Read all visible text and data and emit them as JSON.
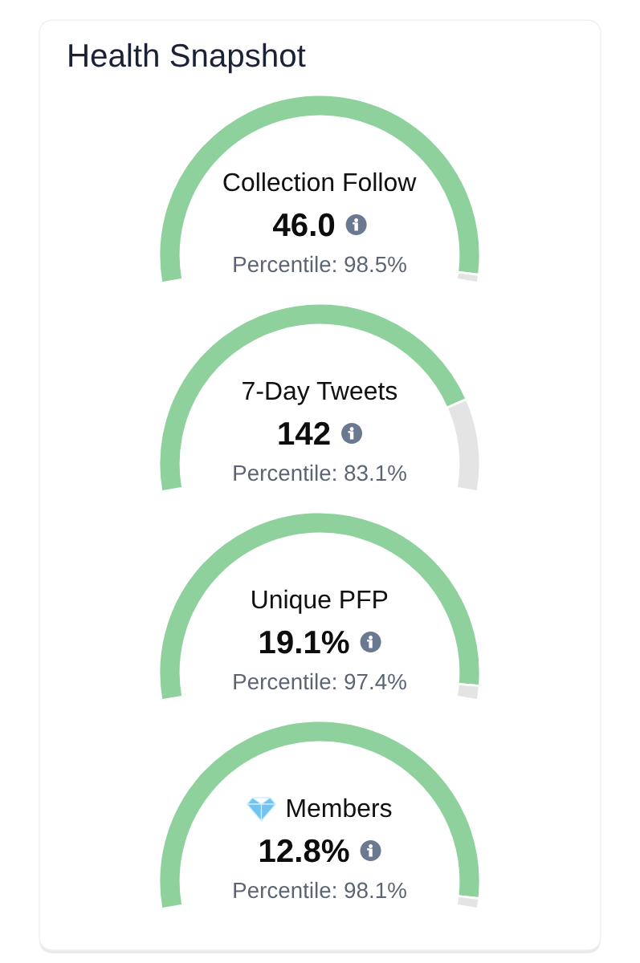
{
  "chart_data": [
    {
      "type": "other",
      "title": "Health Snapshot"
    },
    {
      "type": "donut",
      "title": "Collection Follow",
      "categories": [
        null,
        null
      ],
      "values": [
        98.5,
        1.5
      ],
      "colors": [
        "#8ed19d",
        "#e4e4e4"
      ],
      "annotations": [
        "46.0",
        "Percentile: 98.5%"
      ]
    },
    {
      "type": "donut",
      "title": "7-Day Tweets",
      "categories": [
        null,
        null
      ],
      "values": [
        83.1,
        16.9
      ],
      "colors": [
        "#8ed19d",
        "#e4e4e4"
      ],
      "annotations": [
        "142",
        "Percentile: 83.1%"
      ]
    },
    {
      "type": "donut",
      "title": "Unique PFP",
      "categories": [
        null,
        null
      ],
      "values": [
        97.4,
        2.6
      ],
      "colors": [
        "#8ed19d",
        "#e4e4e4"
      ],
      "annotations": [
        "19.1%",
        "Percentile: 97.4%"
      ]
    },
    {
      "type": "donut",
      "title": "Members",
      "categories": [
        null,
        null
      ],
      "values": [
        98.1,
        1.9
      ],
      "colors": [
        "#8ed19d",
        "#e4e4e4"
      ],
      "annotations": [
        "12.8%",
        "Percentile: 98.1%"
      ]
    }
  ]
}
